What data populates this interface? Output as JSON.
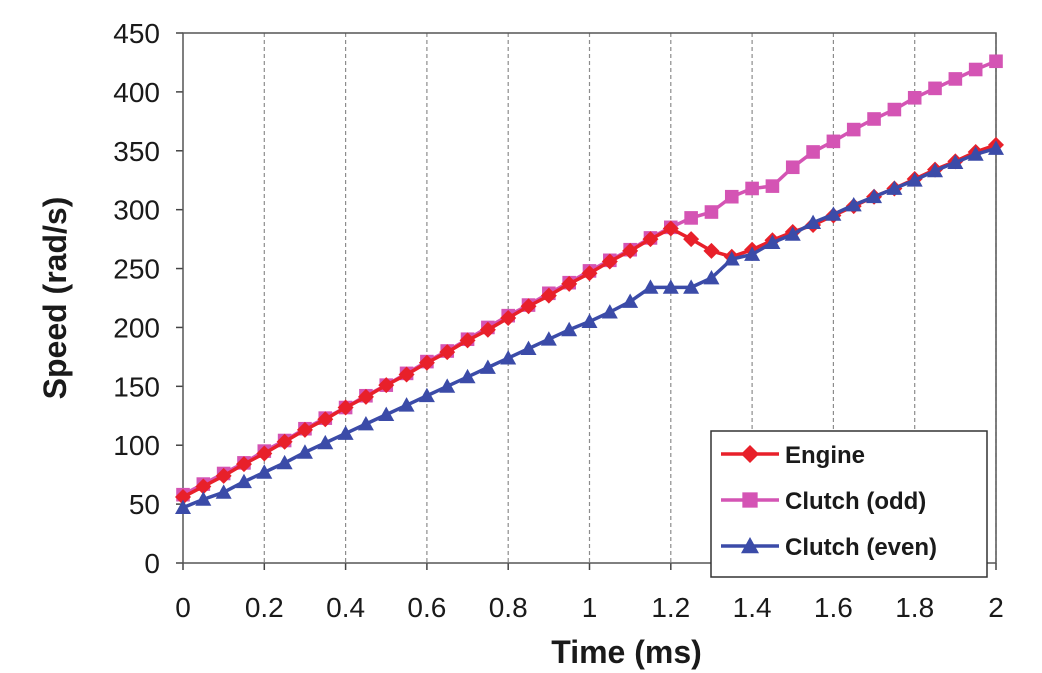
{
  "chart_data": {
    "type": "line",
    "title": "",
    "xlabel": "Time (ms)",
    "ylabel": "Speed (rad/s)",
    "xlim": [
      0,
      2
    ],
    "ylim": [
      0,
      450
    ],
    "xticks": [
      "0",
      "0.2",
      "0.4",
      "0.6",
      "0.8",
      "1",
      "1.2",
      "1.4",
      "1.6",
      "1.8",
      "2"
    ],
    "yticks": [
      "0",
      "50",
      "100",
      "150",
      "200",
      "250",
      "300",
      "350",
      "400",
      "450"
    ],
    "grid": "vertical dashed",
    "legend_position": "bottom-right",
    "x": [
      0,
      0.05,
      0.1,
      0.15,
      0.2,
      0.25,
      0.3,
      0.35,
      0.4,
      0.45,
      0.5,
      0.55,
      0.6,
      0.65,
      0.7,
      0.75,
      0.8,
      0.85,
      0.9,
      0.95,
      1.0,
      1.05,
      1.1,
      1.15,
      1.2,
      1.25,
      1.3,
      1.35,
      1.4,
      1.45,
      1.5,
      1.55,
      1.6,
      1.65,
      1.7,
      1.75,
      1.8,
      1.85,
      1.9,
      1.95,
      2.0
    ],
    "series": [
      {
        "name": "Engine",
        "color": "#e8202a",
        "marker": "diamond",
        "values": [
          56,
          65,
          74,
          84,
          93,
          103,
          113,
          122,
          132,
          141,
          151,
          160,
          170,
          179,
          189,
          198,
          208,
          218,
          227,
          237,
          246,
          256,
          265,
          275,
          284,
          275,
          265,
          260,
          266,
          274,
          281,
          287,
          295,
          303,
          311,
          318,
          326,
          334,
          341,
          349,
          355
        ]
      },
      {
        "name": "Clutch (odd)",
        "color": "#d454b4",
        "marker": "square",
        "values": [
          58,
          67,
          76,
          85,
          95,
          104,
          114,
          123,
          132,
          142,
          151,
          161,
          171,
          180,
          190,
          200,
          210,
          219,
          229,
          238,
          248,
          257,
          266,
          276,
          285,
          293,
          298,
          311,
          318,
          320,
          336,
          349,
          358,
          368,
          377,
          385,
          395,
          403,
          411,
          419,
          426
        ]
      },
      {
        "name": "Clutch (even)",
        "color": "#3b4ba8",
        "marker": "triangle",
        "values": [
          47,
          54,
          60,
          69,
          77,
          85,
          94,
          102,
          110,
          118,
          126,
          134,
          142,
          150,
          158,
          166,
          174,
          182,
          190,
          198,
          205,
          213,
          222,
          234,
          234,
          234,
          242,
          258,
          262,
          272,
          279,
          289,
          296,
          304,
          311,
          318,
          325,
          333,
          340,
          347,
          352
        ]
      }
    ]
  }
}
